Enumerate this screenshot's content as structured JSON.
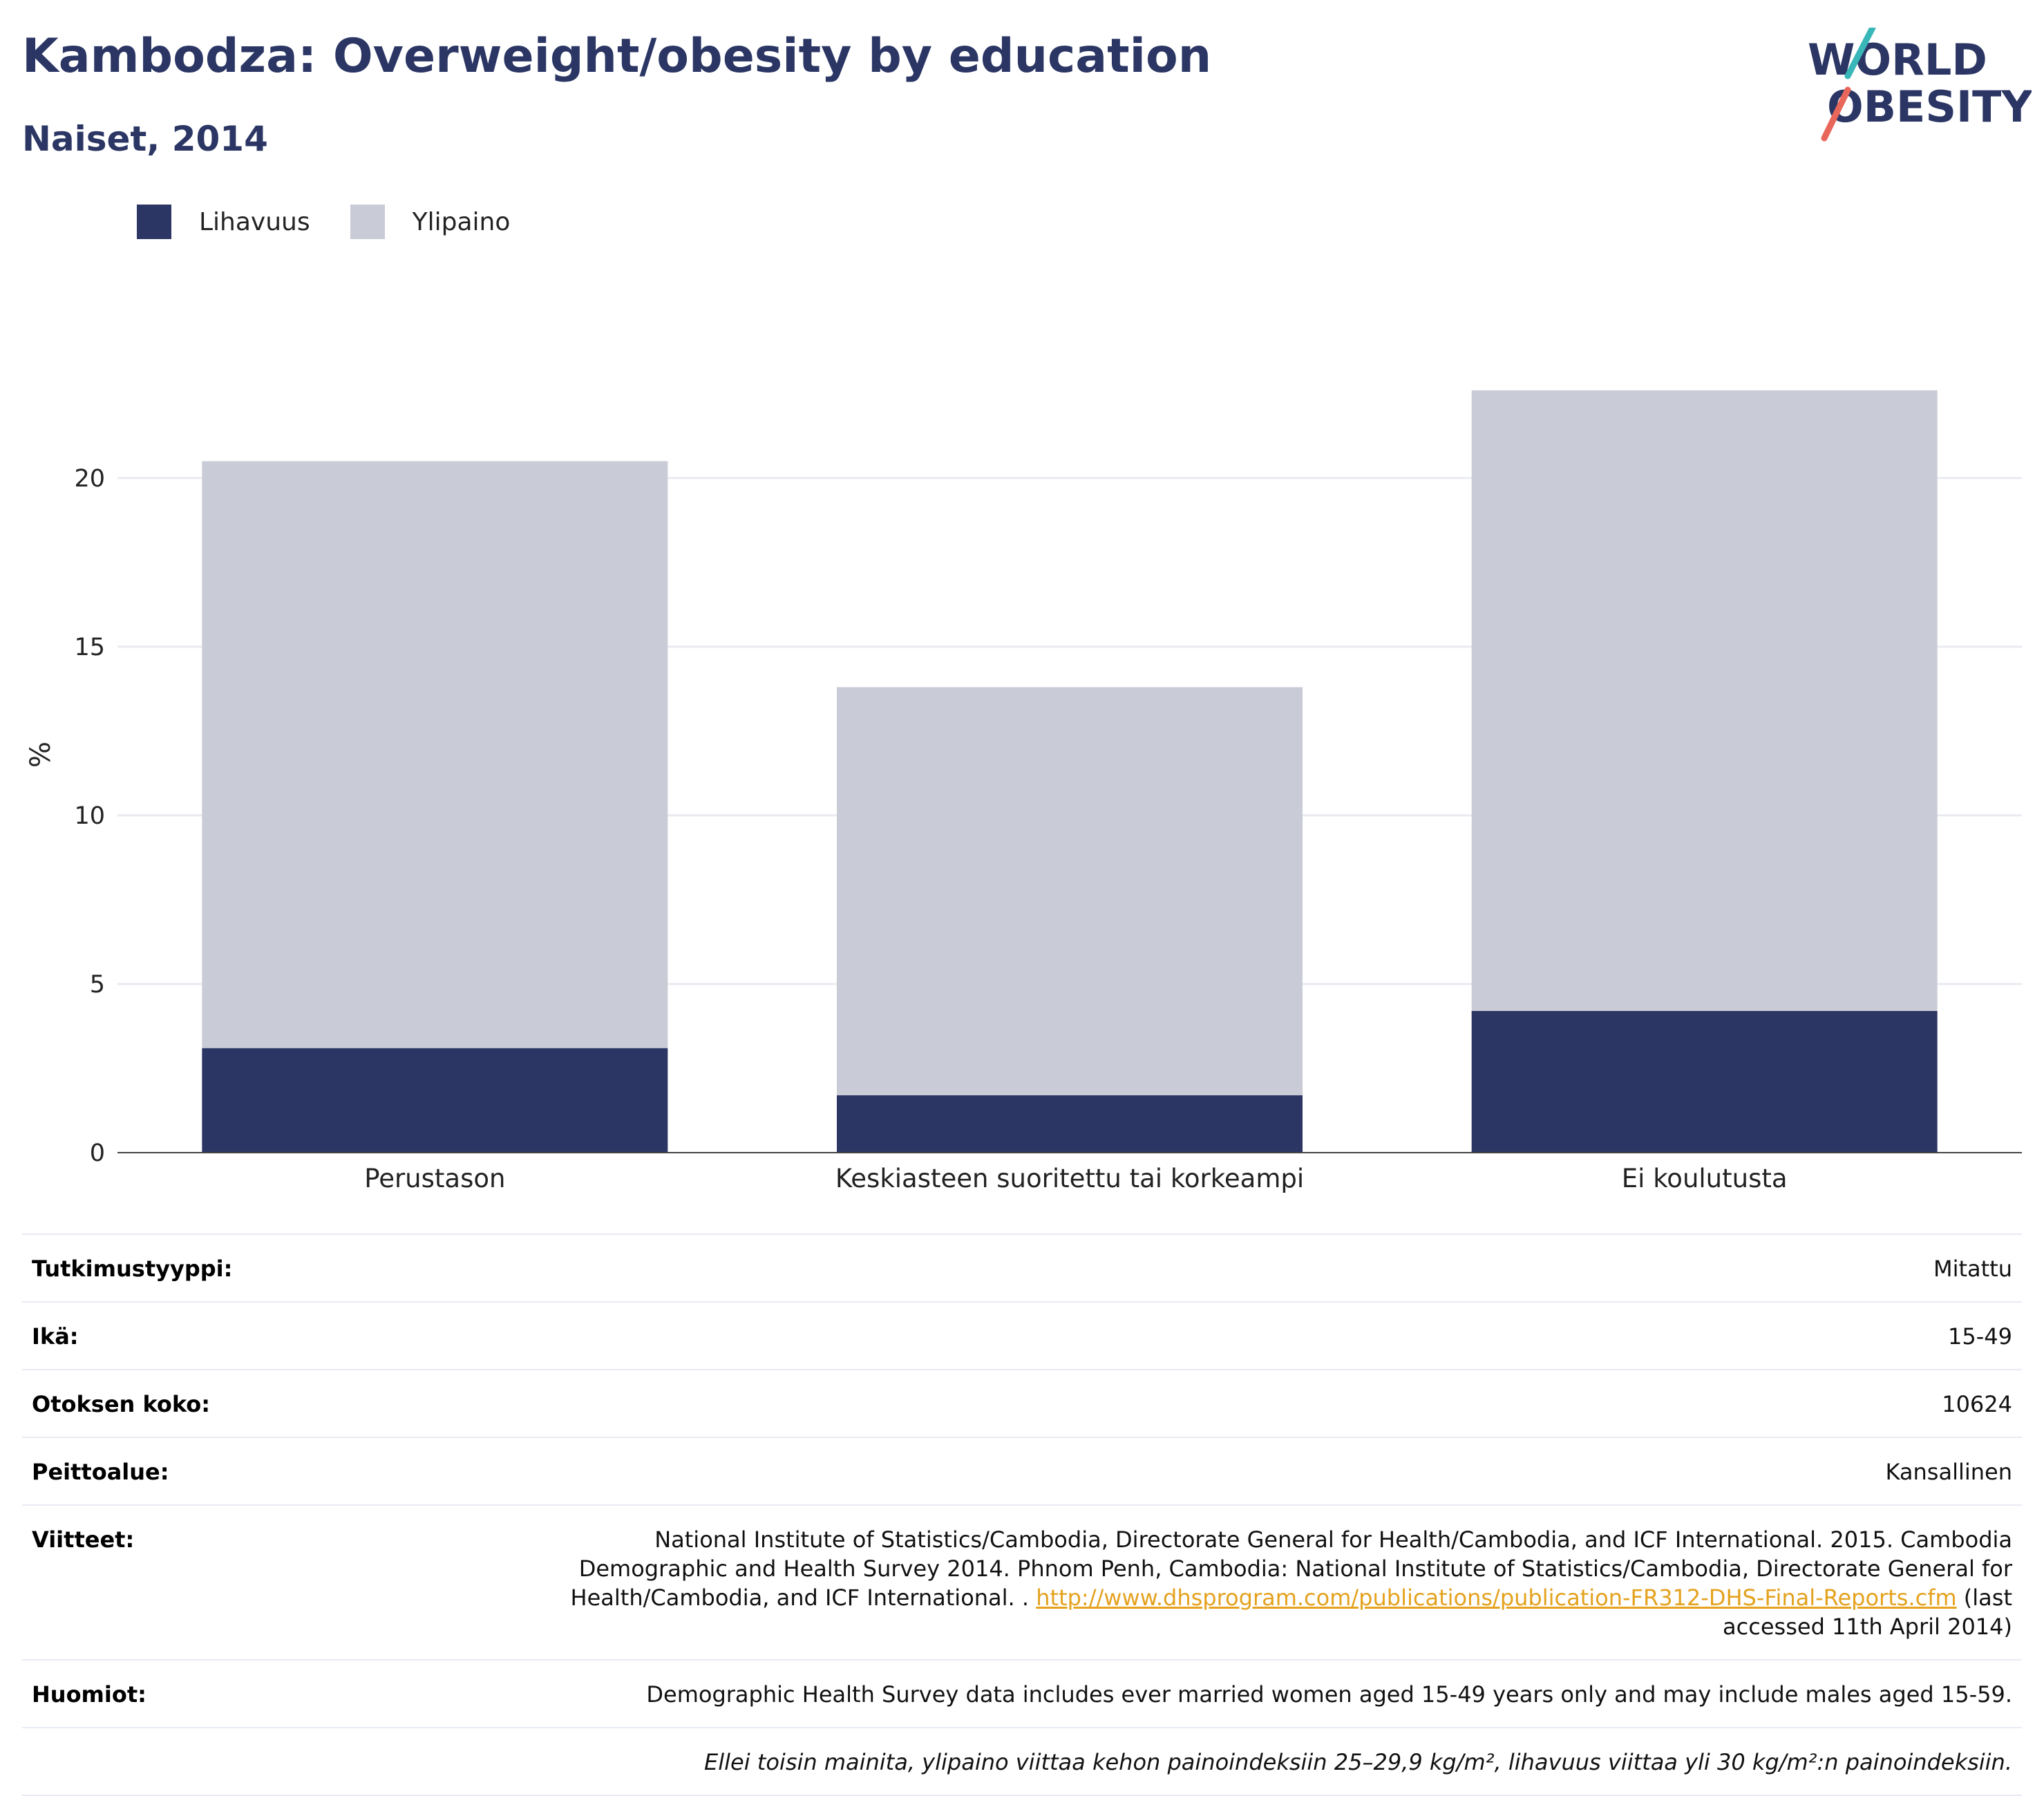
{
  "header": {
    "title": "Kambodza: Overweight/obesity by education",
    "subtitle": "Naiset, 2014"
  },
  "logo": {
    "line1": "WORLD",
    "line2": "OBESITY",
    "accent_teal": "#38b6b8",
    "accent_red": "#e8665a",
    "text_color": "#2b3664"
  },
  "legend": {
    "items": [
      {
        "label": "Lihavuus",
        "color": "#2b3664"
      },
      {
        "label": "Ylipaino",
        "color": "#c9cbd6"
      }
    ]
  },
  "chart_data": {
    "type": "bar",
    "stacked": true,
    "categories": [
      "Perustason",
      "Keskiasteen suoritettu tai korkeampi",
      "Ei koulutusta"
    ],
    "series": [
      {
        "name": "Lihavuus",
        "color": "#2b3664",
        "values": [
          3.1,
          1.7,
          4.2
        ]
      },
      {
        "name": "Ylipaino",
        "color": "#c9cbd6",
        "values": [
          17.4,
          12.1,
          18.4
        ]
      }
    ],
    "ylabel": "%",
    "yticks": [
      0,
      5,
      10,
      15,
      20
    ],
    "ylim": [
      0,
      22.7
    ],
    "grid": true,
    "legend_position": "top-left"
  },
  "meta": {
    "rows": [
      {
        "key": "Tutkimustyyppi:",
        "value": "Mitattu"
      },
      {
        "key": "Ikä:",
        "value": "15-49"
      },
      {
        "key": "Otoksen koko:",
        "value": "10624"
      },
      {
        "key": "Peittoalue:",
        "value": "Kansallinen"
      }
    ],
    "references": {
      "key": "Viitteet:",
      "text_before": "National Institute of Statistics/Cambodia, Directorate General for Health/Cambodia, and ICF International. 2015. Cambodia Demographic and Health Survey 2014. Phnom Penh, Cambodia: National Institute of Statistics/Cambodia, Directorate General for Health/Cambodia, and ICF International. . ",
      "link": "http://www.dhsprogram.com/publications/publication-FR312-DHS-Final-Reports.cfm",
      "text_after": " (last accessed 11th April 2014)"
    },
    "notes": {
      "key": "Huomiot:",
      "value": "Demographic Health Survey data includes ever married women aged 15-49 years only and may include males aged 15-59."
    },
    "footnote": "Ellei toisin mainita, ylipaino viittaa kehon painoindeksiin 25–29,9 kg/m², lihavuus viittaa yli 30 kg/m²:n painoindeksiin."
  }
}
